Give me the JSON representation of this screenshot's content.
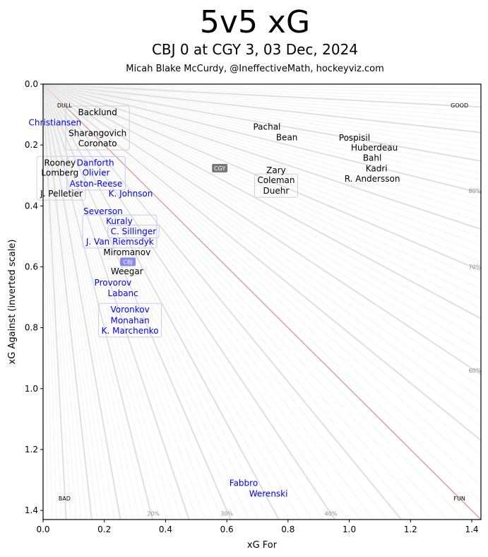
{
  "chart_data": {
    "type": "scatter",
    "title": "5v5 xG",
    "subtitle": "CBJ 0 at CGY 3, 03 Dec, 2024",
    "credit": "Micah Blake McCurdy, @IneffectiveMath, hockeyviz.com",
    "xlabel": "xG For",
    "ylabel": "xG Against (inverted scale)",
    "xlim": [
      0,
      1.43
    ],
    "ylim": [
      1.43,
      0
    ],
    "y_inverted": true,
    "grid": false,
    "xticks": [
      "0.0",
      "0.2",
      "0.4",
      "0.6",
      "0.8",
      "1.0",
      "1.2",
      "1.4"
    ],
    "yticks": [
      "0.0",
      "0.2",
      "0.4",
      "0.6",
      "0.8",
      "1.0",
      "1.2",
      "1.4"
    ],
    "corner_labels": [
      {
        "text": "DULL",
        "x": 0.07,
        "y": 0.07
      },
      {
        "text": "GOOD",
        "x": 1.36,
        "y": 0.07
      },
      {
        "text": "BAD",
        "x": 0.07,
        "y": 1.36
      },
      {
        "text": "FUN",
        "x": 1.36,
        "y": 1.36
      }
    ],
    "share_lines_percent": {
      "minor_step": 1,
      "major_step": 5,
      "even_line": 50
    },
    "share_labels": [
      {
        "text": "80%",
        "x": 1.41,
        "y": 0.35
      },
      {
        "text": "70%",
        "x": 1.41,
        "y": 0.6
      },
      {
        "text": "60%",
        "x": 1.41,
        "y": 0.94
      },
      {
        "text": "20%",
        "x": 0.36,
        "y": 1.41
      },
      {
        "text": "30%",
        "x": 0.6,
        "y": 1.41
      },
      {
        "text": "40%",
        "x": 0.94,
        "y": 1.41
      }
    ],
    "teams": [
      {
        "name": "CGY",
        "color": "#000000",
        "marker_color": "#777777",
        "x": 0.577,
        "y": 0.276
      },
      {
        "name": "CBJ",
        "color": "#0000ff",
        "marker_color": "#8888ee",
        "x": 0.277,
        "y": 0.576
      }
    ],
    "players": [
      {
        "team": "CGY",
        "group": [
          {
            "name": "Backlund",
            "x": 0.178,
            "y": 0.114
          },
          {
            "name": "Sharangovich",
            "x": 0.178,
            "y": 0.149
          },
          {
            "name": "Coronato",
            "x": 0.178,
            "y": 0.183
          }
        ],
        "boxed": true
      },
      {
        "team": "CGY",
        "group": [
          {
            "name": "Rooney",
            "x": 0.055,
            "y": 0.279
          },
          {
            "name": "Lomberg",
            "x": 0.055,
            "y": 0.313
          },
          {
            "name": "J. Pelletier",
            "x": 0.06,
            "y": 0.339
          }
        ],
        "boxed": true
      },
      {
        "team": "CGY",
        "group": [
          {
            "name": "Pachal",
            "x": 0.731,
            "y": 0.158
          }
        ],
        "boxed": false
      },
      {
        "team": "CGY",
        "group": [
          {
            "name": "Bean",
            "x": 0.796,
            "y": 0.158
          }
        ],
        "boxed": false
      },
      {
        "team": "CGY",
        "group": [
          {
            "name": "Pospisil",
            "x": 1.017,
            "y": 0.181
          }
        ],
        "boxed": false
      },
      {
        "team": "CGY",
        "group": [
          {
            "name": "Huberdeau",
            "x": 1.082,
            "y": 0.211
          }
        ],
        "boxed": false
      },
      {
        "team": "CGY",
        "group": [
          {
            "name": "Bahl",
            "x": 1.075,
            "y": 0.246
          }
        ],
        "boxed": false
      },
      {
        "team": "CGY",
        "group": [
          {
            "name": "Kadri",
            "x": 1.089,
            "y": 0.274
          }
        ],
        "boxed": false
      },
      {
        "team": "CGY",
        "group": [
          {
            "name": "R. Andersson",
            "x": 1.075,
            "y": 0.306
          }
        ],
        "boxed": false
      },
      {
        "team": "CGY",
        "group": [
          {
            "name": "Zary",
            "x": 0.761,
            "y": 0.283
          }
        ],
        "boxed": false
      },
      {
        "team": "CGY",
        "group": [
          {
            "name": "Coleman",
            "x": 0.761,
            "y": 0.316
          },
          {
            "name": "Duehr",
            "x": 0.761,
            "y": 0.351
          }
        ],
        "boxed": true
      },
      {
        "team": "CGY",
        "group": [
          {
            "name": "Miromanov",
            "x": 0.274,
            "y": 0.532
          }
        ],
        "boxed": false
      },
      {
        "team": "CGY",
        "group": [
          {
            "name": "Weegar",
            "x": 0.274,
            "y": 0.594
          }
        ],
        "boxed": false
      },
      {
        "team": "CBJ",
        "group": [
          {
            "name": "Christiansen",
            "x": 0.039,
            "y": 0.13
          }
        ],
        "boxed": false
      },
      {
        "team": "CBJ",
        "group": [
          {
            "name": "Danforth",
            "x": 0.171,
            "y": 0.262
          },
          {
            "name": "Olivier",
            "x": 0.173,
            "y": 0.295
          },
          {
            "name": "Aston-Reese",
            "x": 0.173,
            "y": 0.33
          }
        ],
        "boxed": true
      },
      {
        "team": "CBJ",
        "group": [
          {
            "name": "K. Johnson",
            "x": 0.286,
            "y": 0.33
          }
        ],
        "boxed": false
      },
      {
        "team": "CBJ",
        "group": [
          {
            "name": "Severson",
            "x": 0.196,
            "y": 0.441
          }
        ],
        "boxed": false
      },
      {
        "team": "CBJ",
        "group": [
          {
            "name": "Kuraly",
            "x": 0.249,
            "y": 0.476
          },
          {
            "name": "J. Van Riemsdyk",
            "x": 0.251,
            "y": 0.511
          }
        ],
        "boxed": true
      },
      {
        "team": "CBJ",
        "group": [
          {
            "name": "C. Sillinger",
            "x": 0.295,
            "y": 0.49
          }
        ],
        "boxed": true
      },
      {
        "team": "CBJ",
        "group": [
          {
            "name": "Provorov",
            "x": 0.228,
            "y": 0.664
          }
        ],
        "boxed": false
      },
      {
        "team": "CBJ",
        "group": [
          {
            "name": "Labanc",
            "x": 0.261,
            "y": 0.676
          }
        ],
        "boxed": false
      },
      {
        "team": "CBJ",
        "group": [
          {
            "name": "Voronkov",
            "x": 0.284,
            "y": 0.741
          },
          {
            "name": "Monahan",
            "x": 0.284,
            "y": 0.776
          },
          {
            "name": "K. Marchenko",
            "x": 0.284,
            "y": 0.81
          }
        ],
        "boxed": true
      },
      {
        "team": "CBJ",
        "group": [
          {
            "name": "Fabbro",
            "x": 0.655,
            "y": 1.328
          }
        ],
        "boxed": false
      },
      {
        "team": "CBJ",
        "group": [
          {
            "name": "Werenski",
            "x": 0.736,
            "y": 1.328
          }
        ],
        "boxed": false
      }
    ]
  }
}
